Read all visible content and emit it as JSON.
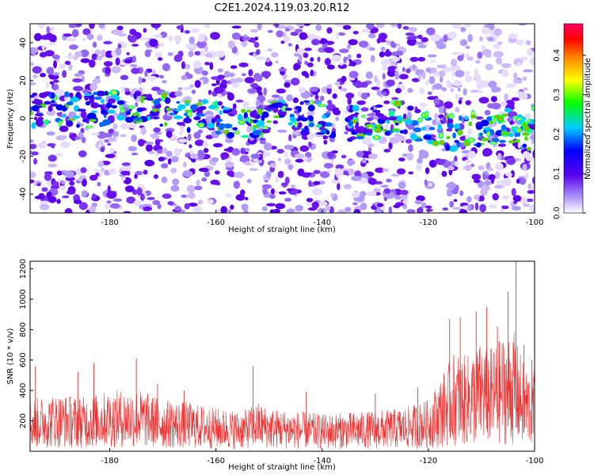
{
  "title": "C2E1.2024.119.03.20.R12",
  "chart_data": [
    {
      "type": "heatmap",
      "xlabel": "Height of straight line (km)",
      "ylabel": "Frequency (Hz)",
      "xlim": [
        -195,
        -100
      ],
      "ylim": [
        -50,
        50
      ],
      "xticks": [
        -180,
        -160,
        -140,
        -120,
        -100
      ],
      "yticks": [
        -40,
        -20,
        0,
        20,
        40
      ],
      "grid": false,
      "colorbar": {
        "label": "Normalized spectral amplitude",
        "range": [
          0.0,
          0.48
        ],
        "ticks": [
          0.0,
          0.1,
          0.2,
          0.3,
          0.4
        ],
        "colors": [
          "#ffffff",
          "#b09af8",
          "#5a00ee",
          "#0000ff",
          "#00ccff",
          "#00ff00",
          "#ffff00",
          "#ff8800",
          "#ff0000",
          "#ff0066"
        ]
      },
      "description_series": [
        {
          "x": [
            -195,
            -185,
            -175,
            -165,
            -155,
            -145,
            -135,
            -125,
            -120,
            -115,
            -110,
            -105,
            -101
          ],
          "y": [
            5,
            4,
            6,
            2,
            -2,
            1,
            -3,
            0,
            -5,
            -8,
            -5,
            -3,
            -10
          ]
        }
      ]
    },
    {
      "type": "line",
      "xlabel": "Height of straight line (km)",
      "ylabel": "SNR (10 * v/v)",
      "xlim": [
        -195,
        -100
      ],
      "ylim": [
        0,
        1250
      ],
      "xticks": [
        -180,
        -160,
        -140,
        -120,
        -100
      ],
      "yticks": [
        200,
        400,
        600,
        800,
        1000,
        1200
      ],
      "color": "#ee3333",
      "series": [
        {
          "x": [
            -195,
            -190,
            -185,
            -180,
            -175,
            -170,
            -165,
            -160,
            -155,
            -152,
            -150,
            -145,
            -140,
            -135,
            -130,
            -125,
            -120,
            -117,
            -115,
            -113,
            -110,
            -108,
            -106,
            -104,
            -102,
            -100
          ],
          "y": [
            180,
            200,
            190,
            210,
            220,
            180,
            170,
            150,
            140,
            170,
            150,
            140,
            130,
            135,
            140,
            150,
            180,
            280,
            350,
            330,
            380,
            360,
            400,
            420,
            300,
            280
          ]
        }
      ],
      "peaks": [
        {
          "x": -194,
          "y": 560
        },
        {
          "x": -186,
          "y": 520
        },
        {
          "x": -183,
          "y": 580
        },
        {
          "x": -175,
          "y": 610
        },
        {
          "x": -171,
          "y": 440
        },
        {
          "x": -166,
          "y": 400
        },
        {
          "x": -153,
          "y": 560
        },
        {
          "x": -143,
          "y": 390
        },
        {
          "x": -130,
          "y": 380
        },
        {
          "x": -122,
          "y": 420
        },
        {
          "x": -116,
          "y": 870
        },
        {
          "x": -114,
          "y": 880
        },
        {
          "x": -111,
          "y": 920
        },
        {
          "x": -109,
          "y": 950
        },
        {
          "x": -107,
          "y": 820
        },
        {
          "x": -105,
          "y": 1050
        },
        {
          "x": -103.5,
          "y": 1250
        },
        {
          "x": -102,
          "y": 700
        },
        {
          "x": -100.5,
          "y": 600
        }
      ]
    }
  ]
}
